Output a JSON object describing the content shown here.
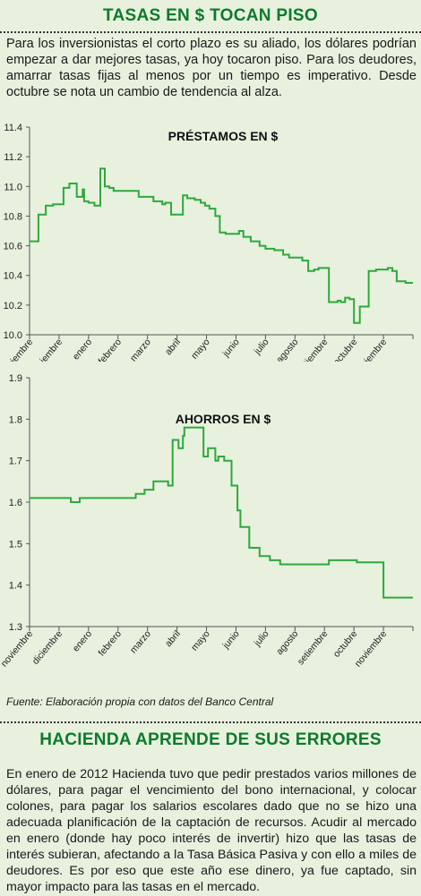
{
  "header": {
    "title": "TASAS EN $ TOCAN PISO"
  },
  "intro": "Para los inversionistas el corto plazo es su aliado, los dólares podrían empezar a dar mejores tasas, ya hoy tocaron piso. Para los deudores, amarrar tasas fijas al menos por un tiempo es imperativo. Desde octubre se nota un cambio de tendencia al alza.",
  "colors": {
    "title": "#0d7a2e",
    "line": "#2fa83d",
    "background": "#e7f1de"
  },
  "chart_data": [
    {
      "type": "line",
      "title": "PRÉSTAMOS EN  $",
      "months": [
        "noviembre",
        "diciembre",
        "enero",
        "febrero",
        "marzo",
        "abril",
        "mayo",
        "junio",
        "julio",
        "agosto",
        "setiembre",
        "octubre",
        "noviembre"
      ],
      "yticks": [
        "10.0",
        "10.2",
        "10.4",
        "10.6",
        "10.8",
        "11.0",
        "11.2",
        "11.4"
      ],
      "ylim": [
        10.0,
        11.4
      ],
      "xlim": [
        0,
        13
      ],
      "grid": false,
      "series": [
        {
          "x": [
            0,
            0.15,
            0.3,
            0.55,
            0.8,
            1.0,
            1.15,
            1.35,
            1.6,
            1.8,
            1.85,
            2.0,
            2.2,
            2.4,
            2.55,
            2.7,
            2.85,
            3.5,
            3.7,
            4.2,
            4.5,
            4.6,
            4.8,
            5.2,
            5.35,
            5.6,
            5.8,
            5.95,
            6.1,
            6.3,
            6.45,
            6.65,
            7.1,
            7.25,
            7.5,
            7.8,
            8.0,
            8.3,
            8.6,
            8.8,
            9.0,
            9.25,
            9.45,
            9.65,
            9.8,
            10.15,
            10.3,
            10.45,
            10.55,
            10.7,
            10.85,
            11.0,
            11.2,
            11.5,
            11.75,
            12.15,
            12.3,
            12.45,
            12.5,
            12.75,
            13
          ],
          "y": [
            10.63,
            10.63,
            10.81,
            10.87,
            10.88,
            10.88,
            10.99,
            11.02,
            10.93,
            10.98,
            10.9,
            10.89,
            10.87,
            11.12,
            11.0,
            10.99,
            10.97,
            10.97,
            10.93,
            10.9,
            10.88,
            10.89,
            10.81,
            10.94,
            10.92,
            10.91,
            10.89,
            10.87,
            10.85,
            10.8,
            10.69,
            10.68,
            10.7,
            10.66,
            10.63,
            10.6,
            10.58,
            10.57,
            10.54,
            10.52,
            10.52,
            10.5,
            10.43,
            10.44,
            10.45,
            10.22,
            10.22,
            10.23,
            10.22,
            10.25,
            10.24,
            10.08,
            10.19,
            10.43,
            10.44,
            10.45,
            10.43,
            10.36,
            10.36,
            10.35,
            10.35
          ]
        }
      ]
    },
    {
      "type": "line",
      "title": "AHORROS EN $",
      "months": [
        "noviembre",
        "diciembre",
        "enero",
        "febrero",
        "marzo",
        "abril",
        "mayo",
        "junio",
        "julio",
        "agosto",
        "setiembre",
        "octubre",
        "noviembre"
      ],
      "yticks": [
        "1.3",
        "1.4",
        "1.5",
        "1.6",
        "1.7",
        "1.8",
        "1.9"
      ],
      "ylim": [
        1.3,
        1.9
      ],
      "xlim": [
        0,
        13
      ],
      "grid": false,
      "series": [
        {
          "x": [
            0,
            1.0,
            1.4,
            1.7,
            2.2,
            2.8,
            3.3,
            3.6,
            3.9,
            4.2,
            4.5,
            4.7,
            4.85,
            5.05,
            5.2,
            5.25,
            5.9,
            6.05,
            6.3,
            6.4,
            6.6,
            6.85,
            7.05,
            7.15,
            7.45,
            7.8,
            8.15,
            8.5,
            8.9,
            9.55,
            9.9,
            10.15,
            10.35,
            10.55,
            10.75,
            11.1,
            11.4,
            11.95,
            12.0,
            13
          ],
          "y": [
            1.61,
            1.61,
            1.6,
            1.61,
            1.61,
            1.61,
            1.61,
            1.62,
            1.63,
            1.65,
            1.65,
            1.64,
            1.75,
            1.73,
            1.76,
            1.78,
            1.71,
            1.73,
            1.7,
            1.71,
            1.7,
            1.64,
            1.58,
            1.54,
            1.49,
            1.47,
            1.46,
            1.45,
            1.45,
            1.45,
            1.45,
            1.46,
            1.46,
            1.46,
            1.46,
            1.455,
            1.455,
            1.455,
            1.37,
            1.37
          ]
        }
      ]
    }
  ],
  "source": "Fuente: Elaboración propia con datos del Banco Central",
  "section2": {
    "title": "HACIENDA APRENDE DE SUS ERRORES",
    "text": "En enero de 2012  Hacienda tuvo que pedir prestados varios millones de dólares, para pagar el vencimiento del bono internacional, y colocar colones, para pagar los salarios escolares dado que no se hizo una adecuada planificación de la captación de recursos.  Acudir al mercado en enero (donde hay poco interés de invertir) hizo que las tasas de interés subieran, afectando a la Tasa Básica Pasiva y con ello a miles de deudores. Es por eso que este año ese dinero, ya fue captado, sin mayor impacto para las tasas en el mercado."
  }
}
